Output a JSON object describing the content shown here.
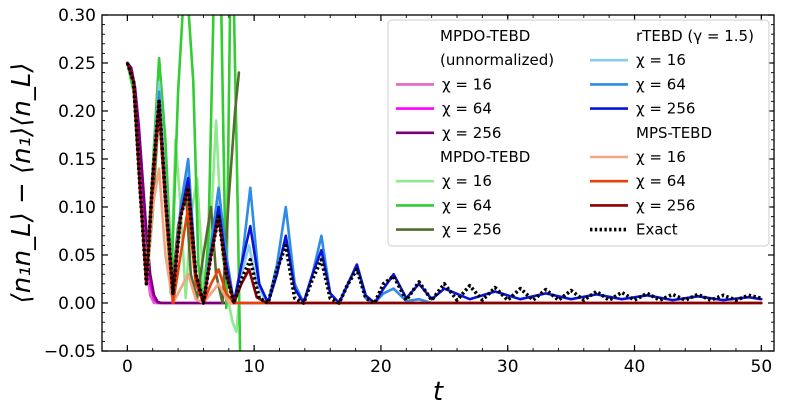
{
  "chart_data": {
    "type": "line",
    "title": "",
    "xlabel": "t",
    "ylabel": "⟨n₁n_L⟩ − ⟨n₁⟩⟨n_L⟩",
    "xlim": [
      -2,
      51
    ],
    "ylim": [
      -0.05,
      0.3
    ],
    "xticks": [
      0,
      10,
      20,
      30,
      40,
      50
    ],
    "xtick_labels": [
      "0",
      "10",
      "20",
      "30",
      "40",
      "50"
    ],
    "yticks": [
      -0.05,
      0.0,
      0.05,
      0.1,
      0.15,
      0.2,
      0.25,
      0.3
    ],
    "ytick_labels": [
      "−0.05",
      "0.00",
      "0.05",
      "0.10",
      "0.15",
      "0.20",
      "0.25",
      "0.30"
    ],
    "legend_position": "top-right",
    "legend": {
      "col1": [
        {
          "type": "header",
          "text": "MPDO-TEBD"
        },
        {
          "type": "header",
          "text": "(unnormalized)"
        },
        {
          "type": "entry",
          "label": "χ = 16",
          "series": "mpdo_un_16"
        },
        {
          "type": "entry",
          "label": "χ = 64",
          "series": "mpdo_un_64"
        },
        {
          "type": "entry",
          "label": "χ = 256",
          "series": "mpdo_un_256"
        },
        {
          "type": "header",
          "text": "MPDO-TEBD"
        },
        {
          "type": "entry",
          "label": "χ = 16",
          "series": "mpdo_16"
        },
        {
          "type": "entry",
          "label": "χ = 64",
          "series": "mpdo_64"
        },
        {
          "type": "entry",
          "label": "χ = 256",
          "series": "mpdo_256"
        }
      ],
      "col2": [
        {
          "type": "header",
          "text": "rTEBD (γ = 1.5)"
        },
        {
          "type": "entry",
          "label": "χ = 16",
          "series": "rtebd_16"
        },
        {
          "type": "entry",
          "label": "χ = 64",
          "series": "rtebd_64"
        },
        {
          "type": "entry",
          "label": "χ = 256",
          "series": "rtebd_256"
        },
        {
          "type": "header",
          "text": "MPS-TEBD"
        },
        {
          "type": "entry",
          "label": "χ = 16",
          "series": "mps_16"
        },
        {
          "type": "entry",
          "label": "χ = 64",
          "series": "mps_64"
        },
        {
          "type": "entry",
          "label": "χ = 256",
          "series": "mps_256"
        },
        {
          "type": "entry",
          "label": "Exact",
          "series": "exact"
        }
      ]
    },
    "series": [
      {
        "id": "mpdo_un_16",
        "name": "MPDO-TEBD (unnormalized) χ = 16",
        "color": "#e066c8",
        "dash": "",
        "width": 2.6,
        "x": [
          0,
          0.3,
          0.6,
          0.9,
          1.2,
          1.5,
          1.8,
          2.1,
          2.4,
          3,
          5,
          10,
          20,
          50
        ],
        "y": [
          0.25,
          0.24,
          0.21,
          0.16,
          0.1,
          0.04,
          0.008,
          0.0,
          0.0,
          0.0,
          0.0,
          0.0,
          0.0,
          0.0
        ]
      },
      {
        "id": "mpdo_un_64",
        "name": "MPDO-TEBD (unnormalized) χ = 64",
        "color": "#ff00ff",
        "dash": "",
        "width": 2.6,
        "x": [
          0,
          0.3,
          0.6,
          0.9,
          1.2,
          1.5,
          1.8,
          2.1,
          2.4,
          2.7,
          3.2,
          5,
          10,
          50
        ],
        "y": [
          0.25,
          0.245,
          0.22,
          0.18,
          0.12,
          0.06,
          0.02,
          0.004,
          0.0,
          0.0,
          0.0,
          0.0,
          0.0,
          0.0
        ]
      },
      {
        "id": "mpdo_un_256",
        "name": "MPDO-TEBD (unnormalized) χ = 256",
        "color": "#7a007a",
        "dash": "",
        "width": 2.6,
        "x": [
          0,
          0.3,
          0.6,
          0.9,
          1.2,
          1.5,
          1.8,
          2.1,
          2.4,
          2.7,
          3.0,
          3.5,
          5,
          50
        ],
        "y": [
          0.25,
          0.245,
          0.225,
          0.185,
          0.13,
          0.075,
          0.03,
          0.008,
          0.001,
          0.0,
          0.0,
          0.0,
          0.0,
          0.0
        ]
      },
      {
        "id": "mpdo_16",
        "name": "MPDO-TEBD χ = 16",
        "color": "#90e890",
        "dash": "",
        "width": 2.6,
        "x": [
          0,
          0.5,
          1.0,
          1.5,
          2.0,
          2.5,
          3.0,
          3.4,
          3.8,
          4.2,
          4.6,
          5.0,
          5.5,
          6.0,
          6.5,
          7.0,
          7.5,
          8.0,
          8.3,
          8.6,
          8.8
        ],
        "y": [
          0.25,
          0.22,
          0.12,
          0.02,
          0.09,
          0.2,
          0.1,
          0.01,
          0.17,
          0.1,
          0.005,
          0.09,
          0.13,
          0.02,
          0.06,
          0.19,
          0.05,
          0.0,
          -0.02,
          -0.03,
          0.0
        ]
      },
      {
        "id": "mpdo_64",
        "name": "MPDO-TEBD χ = 64",
        "color": "#33cc33",
        "dash": "",
        "width": 2.6,
        "x": [
          0,
          0.5,
          1.0,
          1.5,
          2.0,
          2.5,
          3.0,
          3.5,
          4.0,
          4.4,
          4.8,
          5.2,
          5.6,
          6.0,
          6.4,
          6.8,
          7.1,
          7.4,
          7.8,
          8.1,
          8.4,
          8.7,
          8.9,
          9.1
        ],
        "y": [
          0.25,
          0.22,
          0.12,
          0.03,
          0.14,
          0.255,
          0.17,
          0.03,
          0.22,
          0.31,
          0.31,
          0.23,
          0.04,
          0.0,
          0.07,
          0.31,
          0.31,
          0.31,
          -0.005,
          0.31,
          0.31,
          0.1,
          -0.06,
          -0.06
        ]
      },
      {
        "id": "mpdo_256",
        "name": "MPDO-TEBD χ = 256",
        "color": "#556b2f",
        "dash": "",
        "width": 2.6,
        "x": [
          0,
          0.5,
          1.0,
          1.5,
          2.0,
          2.5,
          3.0,
          3.5,
          4.0,
          4.6,
          5.0,
          5.5,
          6.0,
          6.6,
          7.0,
          7.5,
          8.0,
          8.5,
          8.8
        ],
        "y": [
          0.25,
          0.23,
          0.12,
          0.02,
          0.1,
          0.21,
          0.12,
          0.01,
          0.08,
          0.12,
          0.03,
          0.005,
          0.05,
          0.1,
          0.03,
          0.0,
          0.11,
          0.2,
          0.24
        ]
      },
      {
        "id": "rtebd_16",
        "name": "rTEBD (γ = 1.5) χ = 16",
        "color": "#87ceeb",
        "dash": "",
        "width": 2.6,
        "x": [
          0,
          0.5,
          1.0,
          1.5,
          2.0,
          2.5,
          3.0,
          3.6,
          4.2,
          4.8,
          5.4,
          6.0,
          6.6,
          7.2,
          7.8,
          8.4,
          9.0,
          9.6,
          10.2,
          11,
          12,
          14,
          20,
          30,
          50
        ],
        "y": [
          0.25,
          0.23,
          0.12,
          0.02,
          0.13,
          0.23,
          0.12,
          0.01,
          0.09,
          0.14,
          0.03,
          0.0,
          0.05,
          0.11,
          0.04,
          0.0,
          0.03,
          0.06,
          0.02,
          0.0,
          0.0,
          0.0,
          0.0,
          0.0,
          0.0
        ]
      },
      {
        "id": "rtebd_64",
        "name": "rTEBD (γ = 1.5) χ = 64",
        "color": "#2e8be6",
        "dash": "",
        "width": 2.6,
        "x": [
          0,
          0.5,
          1.0,
          1.5,
          2.0,
          2.5,
          3.0,
          3.6,
          4.2,
          4.8,
          5.4,
          6.0,
          6.6,
          7.2,
          7.8,
          8.4,
          9.0,
          9.7,
          10.4,
          11.1,
          11.8,
          12.5,
          13.2,
          13.9,
          14.6,
          15.3,
          16.0,
          16.7,
          17.4,
          18.1,
          18.8,
          19.5,
          20.2,
          21,
          22,
          23,
          24,
          25,
          30,
          40,
          50
        ],
        "y": [
          0.25,
          0.23,
          0.12,
          0.02,
          0.13,
          0.22,
          0.12,
          0.01,
          0.1,
          0.15,
          0.03,
          0.0,
          0.06,
          0.12,
          0.05,
          0.0,
          0.04,
          0.12,
          0.02,
          0.0,
          0.04,
          0.1,
          0.02,
          0.0,
          0.03,
          0.07,
          0.01,
          0.0,
          0.02,
          0.04,
          0.005,
          0.0,
          0.01,
          0.015,
          0.002,
          0.004,
          0.0,
          0.0,
          0.0,
          0.0,
          0.0
        ]
      },
      {
        "id": "rtebd_256",
        "name": "rTEBD (γ = 1.5) χ = 256",
        "color": "#0a14d8",
        "dash": "",
        "width": 2.6,
        "x": [
          0,
          0.5,
          1.0,
          1.5,
          2.0,
          2.5,
          3.0,
          3.6,
          4.2,
          4.8,
          5.4,
          6.0,
          6.6,
          7.2,
          7.8,
          8.4,
          9.0,
          9.7,
          10.4,
          11.1,
          11.8,
          12.5,
          13.2,
          13.9,
          14.6,
          15.3,
          16.0,
          16.7,
          17.4,
          18.1,
          18.8,
          19.5,
          20.2,
          21,
          22,
          23,
          24,
          25,
          27,
          29,
          31,
          33,
          35,
          37,
          39,
          41,
          43,
          45,
          47,
          49,
          50
        ],
        "y": [
          0.25,
          0.23,
          0.12,
          0.02,
          0.12,
          0.2,
          0.11,
          0.01,
          0.09,
          0.13,
          0.03,
          0.0,
          0.05,
          0.1,
          0.04,
          0.0,
          0.04,
          0.08,
          0.02,
          0.0,
          0.03,
          0.07,
          0.015,
          0.0,
          0.03,
          0.055,
          0.01,
          0.0,
          0.02,
          0.04,
          0.008,
          0.0,
          0.015,
          0.03,
          0.005,
          0.02,
          0.004,
          0.015,
          0.004,
          0.012,
          0.004,
          0.01,
          0.004,
          0.009,
          0.004,
          0.008,
          0.003,
          0.007,
          0.003,
          0.006,
          0.004
        ]
      },
      {
        "id": "mps_16",
        "name": "MPS-TEBD χ = 16",
        "color": "#f4a582",
        "dash": "",
        "width": 2.6,
        "x": [
          0,
          0.5,
          1.0,
          1.5,
          2.0,
          2.5,
          3.0,
          3.6,
          4.2,
          4.8,
          5.4,
          6.0,
          6.6,
          7.2,
          8,
          10,
          20,
          50
        ],
        "y": [
          0.25,
          0.23,
          0.12,
          0.02,
          0.1,
          0.14,
          0.05,
          0.0,
          0.015,
          0.03,
          0.004,
          0.0,
          0.01,
          0.02,
          0.0,
          0.0,
          0.0,
          0.0
        ]
      },
      {
        "id": "mps_64",
        "name": "MPS-TEBD χ = 64",
        "color": "#e8410a",
        "dash": "",
        "width": 2.6,
        "x": [
          0,
          0.5,
          1.0,
          1.5,
          2.0,
          2.5,
          3.0,
          3.6,
          4.2,
          4.8,
          5.4,
          6.0,
          6.6,
          7.2,
          7.8,
          8.4,
          9.0,
          10,
          20,
          50
        ],
        "y": [
          0.25,
          0.23,
          0.12,
          0.02,
          0.12,
          0.2,
          0.1,
          0.0,
          0.05,
          0.1,
          0.02,
          0.0,
          0.02,
          0.035,
          0.01,
          0.0,
          0.0,
          0.0,
          0.0,
          0.0
        ]
      },
      {
        "id": "mps_256",
        "name": "MPS-TEBD χ = 256",
        "color": "#8b0000",
        "dash": "",
        "width": 2.6,
        "x": [
          0,
          0.5,
          1.0,
          1.5,
          2.0,
          2.5,
          3.0,
          3.6,
          4.2,
          4.8,
          5.4,
          6.0,
          6.6,
          7.2,
          7.8,
          8.4,
          9.0,
          9.6,
          10.2,
          11,
          12,
          14,
          20,
          50
        ],
        "y": [
          0.25,
          0.23,
          0.12,
          0.02,
          0.13,
          0.21,
          0.11,
          0.01,
          0.09,
          0.12,
          0.03,
          0.0,
          0.05,
          0.09,
          0.03,
          0.0,
          0.02,
          0.035,
          0.006,
          0.0,
          0.0,
          0.0,
          0.0,
          0.0
        ]
      },
      {
        "id": "exact",
        "name": "Exact",
        "color": "#000000",
        "dash": "2.4,2.4",
        "width": 3.6,
        "x": [
          0,
          0.5,
          1.0,
          1.5,
          2.0,
          2.5,
          3.0,
          3.6,
          4.2,
          4.8,
          5.4,
          6.0,
          6.6,
          7.2,
          7.8,
          8.4,
          9.0,
          9.7,
          10.4,
          11.1,
          11.8,
          12.5,
          13.2,
          13.9,
          14.6,
          15.3,
          16.0,
          16.7,
          17.4,
          18.1,
          18.8,
          19.5,
          20.2,
          21,
          22,
          23,
          24,
          25,
          26,
          27,
          28,
          29,
          30,
          31,
          32,
          33,
          34,
          35,
          36,
          37,
          38,
          39,
          40,
          41,
          42,
          43,
          44,
          45,
          46,
          47,
          48,
          49,
          50
        ],
        "y": [
          0.25,
          0.23,
          0.12,
          0.02,
          0.13,
          0.21,
          0.11,
          0.01,
          0.09,
          0.12,
          0.03,
          0.0,
          0.05,
          0.09,
          0.03,
          0.0,
          0.025,
          0.045,
          0.005,
          0.0,
          0.035,
          0.06,
          0.005,
          0.0,
          0.025,
          0.045,
          0.005,
          0.0,
          0.02,
          0.035,
          0.005,
          0.0,
          0.02,
          0.028,
          0.003,
          0.022,
          0.003,
          0.02,
          0.003,
          0.018,
          0.003,
          0.016,
          0.003,
          0.015,
          0.003,
          0.014,
          0.003,
          0.013,
          0.003,
          0.012,
          0.003,
          0.011,
          0.003,
          0.01,
          0.003,
          0.009,
          0.003,
          0.009,
          0.003,
          0.008,
          0.003,
          0.008,
          0.005
        ]
      }
    ]
  }
}
